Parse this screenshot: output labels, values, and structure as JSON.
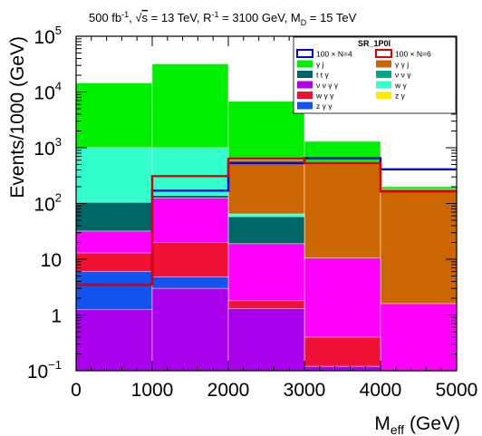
{
  "chart_data": {
    "type": "bar",
    "stacked": true,
    "yscale": "log",
    "title_parts": {
      "lumi": "500 fb",
      "lumi_exp": "-1",
      "sqrt_prefix": ", √",
      "sqrt_arg": "s",
      "rest": " = 13 TeV, R",
      "r_exp": "-1",
      "rest2": " = 3100 GeV, M",
      "md_sub": "D",
      "rest3": " = 15 TeV"
    },
    "xlabel_main": "M",
    "xlabel_sub": "eff",
    "xlabel_unit": " (GeV)",
    "ylabel": "Events/1000 (GeV)",
    "xlim": [
      0,
      5000
    ],
    "ylim": [
      0.1,
      100000
    ],
    "bin_edges": [
      0,
      1000,
      2000,
      3000,
      4000,
      5000
    ],
    "xticks": [
      "0",
      "1000",
      "2000",
      "3000",
      "4000",
      "5000"
    ],
    "yticks": [
      {
        "value": 100000,
        "base": "10",
        "exp": "5"
      },
      {
        "value": 10000,
        "base": "10",
        "exp": "4"
      },
      {
        "value": 1000,
        "base": "10",
        "exp": "3"
      },
      {
        "value": 100,
        "base": "10",
        "exp": "2"
      },
      {
        "value": 10,
        "base": "10",
        "exp": ""
      },
      {
        "value": 1,
        "base": "1",
        "exp": ""
      },
      {
        "value": 0.1,
        "base": "10",
        "exp": "−1"
      }
    ],
    "stack_totals": [
      {
        "name": "γ j",
        "color": "#00ee00",
        "values": [
          14500,
          32000,
          6800,
          1300,
          200
        ]
      },
      {
        "name": "γ γ j",
        "color": "#cc6600",
        "values": [
          1000,
          320,
          600,
          550,
          180
        ]
      },
      {
        "name": "w γ",
        "color": "#33ffcc",
        "values": [
          1000,
          1000,
          65,
          null,
          null
        ]
      },
      {
        "name": "t t γ",
        "color": "#006666",
        "values": [
          105,
          140,
          58,
          null,
          null
        ]
      },
      {
        "name": "ν ν γ γ",
        "color": "#ff00ff",
        "values": [
          32,
          125,
          19,
          10.5,
          1.6
        ]
      },
      {
        "name": "w γ γ",
        "color": "#ee1133",
        "values": [
          13,
          20,
          1.8,
          0.4,
          null
        ]
      },
      {
        "name": "z γ γ",
        "color": "#1155ee",
        "values": [
          6,
          4.8,
          null,
          null,
          null
        ]
      },
      {
        "name": "ν ν γ",
        "color": "#aa00ee",
        "values": [
          1.25,
          3,
          1.3,
          0.12,
          0.1
        ]
      }
    ],
    "signal_series": [
      {
        "name": "100 × N=4",
        "color": "#0000ee",
        "values": [
          3.5,
          170,
          530,
          650,
          410
        ]
      },
      {
        "name": "100 × N=6",
        "color": "#dd0000",
        "values": [
          3.5,
          310,
          640,
          530,
          165
        ]
      }
    ],
    "legend": {
      "header": "SR_1P0I",
      "placement": "top-right",
      "entries": [
        {
          "label": "100 × N=4",
          "color": "#0000ee",
          "style": "line-box"
        },
        {
          "label": "100 × N=6",
          "color": "#dd0000",
          "style": "line-box"
        },
        {
          "label": "γ j",
          "color": "#00ee00",
          "style": "fill"
        },
        {
          "label": "γ γ j",
          "color": "#cc6600",
          "style": "fill"
        },
        {
          "label": "t t γ",
          "color": "#006666",
          "style": "fill"
        },
        {
          "label": "ν ν γ",
          "color": "#00aa88",
          "style": "fill"
        },
        {
          "label": "ν ν γ γ",
          "color": "#aa00ee",
          "style": "fill"
        },
        {
          "label": "w γ",
          "color": "#33ffcc",
          "style": "fill"
        },
        {
          "label": "w γ γ",
          "color": "#ee1133",
          "style": "fill"
        },
        {
          "label": "z γ",
          "color": "#ffee00",
          "style": "fill"
        },
        {
          "label": "z γ γ",
          "color": "#1155ee",
          "style": "fill"
        }
      ]
    }
  }
}
